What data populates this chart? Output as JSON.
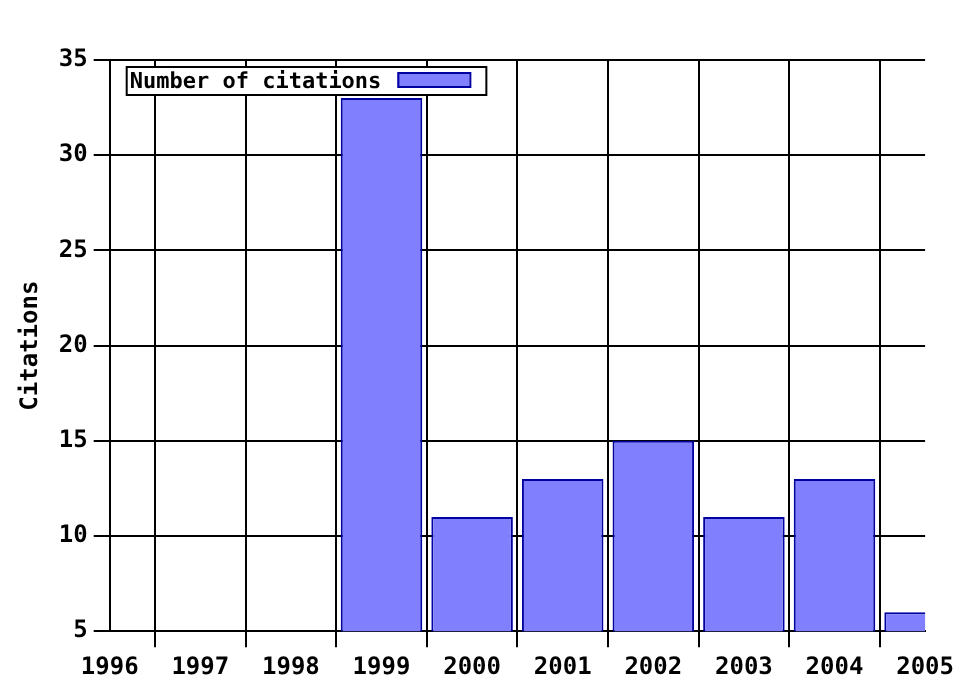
{
  "chart_data": {
    "type": "bar",
    "ylabel": "Citations",
    "x": [
      1999,
      2000,
      2001,
      2002,
      2003,
      2004,
      2005
    ],
    "series": [
      {
        "name": "Number of citations",
        "color": "#8080ff",
        "values": [
          33,
          11,
          13,
          15,
          11,
          13,
          6
        ]
      }
    ],
    "xlim": [
      1996,
      2005
    ],
    "xticks": [
      1996,
      1997,
      1998,
      1999,
      2000,
      2001,
      2002,
      2003,
      2004,
      2005
    ],
    "ylim": [
      5,
      35
    ],
    "yticks": [
      5,
      10,
      15,
      20,
      25,
      30,
      35
    ],
    "grid": true,
    "legend": "top left"
  }
}
